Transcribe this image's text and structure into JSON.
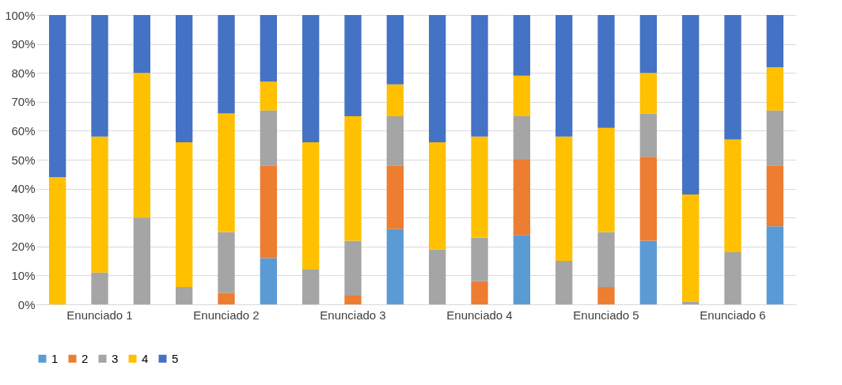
{
  "chart_data": {
    "type": "bar",
    "stacked": true,
    "categories": [
      null,
      "Enunciado 1",
      null,
      null,
      "Enunciado 2",
      null,
      null,
      "Enunciado 3",
      null,
      null,
      "Enunciado 4",
      null,
      null,
      "Enunciado 5",
      null,
      null,
      "Enunciado 6",
      null
    ],
    "series": [
      {
        "name": "1",
        "color": "#5b9bd5",
        "values": [
          0,
          0,
          0,
          0,
          0,
          16,
          0,
          0,
          26,
          0,
          0,
          24,
          0,
          0,
          22,
          0,
          0,
          27
        ]
      },
      {
        "name": "2",
        "color": "#ed7d31",
        "values": [
          0,
          0,
          0,
          0,
          4,
          32,
          0,
          3,
          22,
          0,
          8,
          26,
          0,
          6,
          29,
          0,
          0,
          21
        ]
      },
      {
        "name": "3",
        "color": "#a5a5a5",
        "values": [
          0,
          11,
          30,
          6,
          21,
          19,
          12,
          19,
          17,
          19,
          15,
          15,
          15,
          19,
          15,
          1,
          18,
          19
        ]
      },
      {
        "name": "4",
        "color": "#ffc000",
        "values": [
          44,
          47,
          50,
          50,
          41,
          10,
          44,
          43,
          11,
          37,
          35,
          14,
          43,
          36,
          14,
          37,
          39,
          15
        ]
      },
      {
        "name": "5",
        "color": "#4472c4",
        "values": [
          56,
          42,
          20,
          44,
          34,
          23,
          44,
          35,
          24,
          44,
          42,
          21,
          42,
          39,
          20,
          62,
          43,
          18
        ]
      }
    ],
    "ylim": [
      0,
      100
    ],
    "yticks": [
      {
        "value": 0,
        "label": "0%"
      },
      {
        "value": 10,
        "label": "10%"
      },
      {
        "value": 20,
        "label": "20%"
      },
      {
        "value": 30,
        "label": "30%"
      },
      {
        "value": 40,
        "label": "40%"
      },
      {
        "value": 50,
        "label": "50%"
      },
      {
        "value": 60,
        "label": "60%"
      },
      {
        "value": 70,
        "label": "70%"
      },
      {
        "value": 80,
        "label": "80%"
      },
      {
        "value": 90,
        "label": "90%"
      },
      {
        "value": 100,
        "label": "100%"
      }
    ],
    "grid": "y",
    "legend": "bottom"
  }
}
